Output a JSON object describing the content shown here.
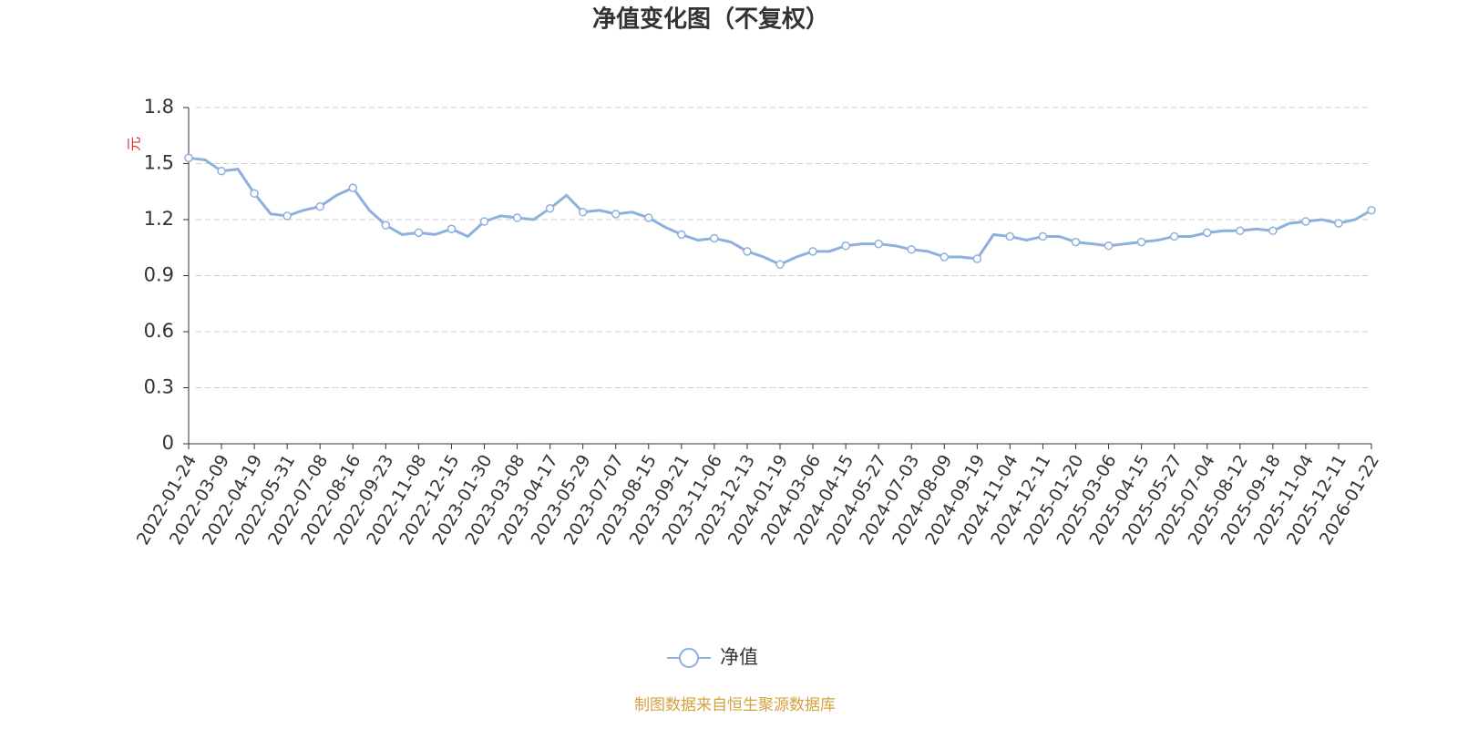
{
  "chart_data": {
    "type": "line",
    "title": "净值变化图（不复权）",
    "y_label": "元",
    "categories": [
      "2022-01-24",
      null,
      "2022-03-09",
      null,
      "2022-04-19",
      null,
      "2022-05-31",
      null,
      "2022-07-08",
      null,
      "2022-08-16",
      null,
      "2022-09-23",
      null,
      "2022-11-08",
      null,
      "2022-12-15",
      null,
      "2023-01-30",
      null,
      "2023-03-08",
      null,
      "2023-04-17",
      null,
      "2023-05-29",
      null,
      "2023-07-07",
      null,
      "2023-08-15",
      null,
      "2023-09-21",
      null,
      "2023-11-06",
      null,
      "2023-12-13",
      null,
      "2024-01-19",
      null,
      "2024-03-06",
      null,
      "2024-04-15",
      null,
      "2024-05-27",
      null,
      "2024-07-03",
      null,
      "2024-08-09",
      null,
      "2024-09-19",
      null,
      "2024-11-04",
      null,
      "2024-12-11",
      null,
      "2025-01-20",
      null,
      "2025-03-06",
      null,
      "2025-04-15",
      null,
      "2025-05-27",
      null,
      "2025-07-04",
      null,
      "2025-08-12",
      null,
      "2025-09-18",
      null,
      "2025-11-04",
      null,
      "2025-12-11",
      null,
      "2026-01-22"
    ],
    "series": [
      {
        "name": "净值",
        "color": "#8eb0de",
        "values": [
          1.53,
          1.52,
          1.46,
          1.47,
          1.34,
          1.23,
          1.22,
          1.25,
          1.27,
          1.33,
          1.37,
          1.25,
          1.17,
          1.12,
          1.13,
          1.12,
          1.15,
          1.11,
          1.19,
          1.22,
          1.21,
          1.2,
          1.26,
          1.33,
          1.24,
          1.25,
          1.23,
          1.24,
          1.21,
          1.16,
          1.12,
          1.09,
          1.1,
          1.08,
          1.03,
          1.0,
          0.96,
          1.0,
          1.03,
          1.03,
          1.06,
          1.07,
          1.07,
          1.06,
          1.04,
          1.03,
          1.0,
          1.0,
          0.99,
          1.12,
          1.11,
          1.09,
          1.11,
          1.11,
          1.08,
          1.07,
          1.06,
          1.07,
          1.08,
          1.09,
          1.11,
          1.11,
          1.13,
          1.14,
          1.14,
          1.15,
          1.14,
          1.18,
          1.19,
          1.2,
          1.18,
          1.2,
          1.25
        ]
      }
    ],
    "ylim": [
      0,
      1.8
    ],
    "yticks": [
      0,
      0.3,
      0.6,
      0.9,
      1.2,
      1.5,
      1.8
    ],
    "grid": true,
    "source": "制图数据来自恒生聚源数据库"
  }
}
